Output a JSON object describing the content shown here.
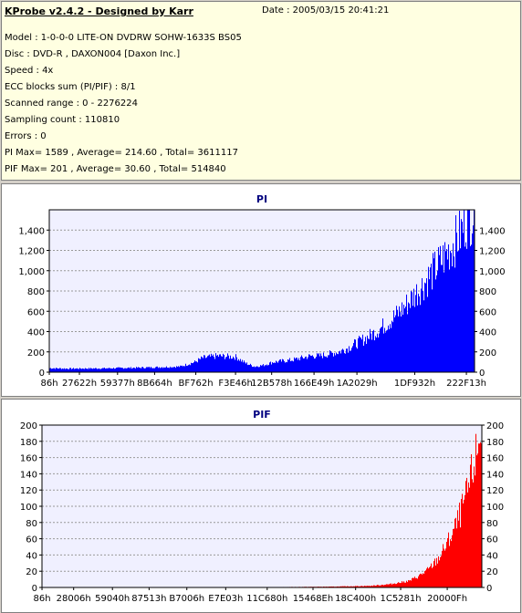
{
  "info": {
    "title": "KProbe v2.4.2 - Designed by Karr",
    "date": "Date : 2005/03/15 20:41:21",
    "lines": [
      "Model : 1-0-0-0 LITE-ON DVDRW SOHW-1633S BS05",
      "Disc : DVD-R , DAXON004 [Daxon Inc.]",
      "Speed : 4x",
      "ECC blocks sum (PI/PIF) : 8/1",
      "Scanned range : 0 - 2276224",
      "Sampling count : 110810",
      "Errors : 0",
      "PI Max= 1589 , Average= 214.60 , Total= 3611117",
      "PIF Max= 201 , Average= 30.60 , Total= 514840"
    ]
  },
  "chart_data": [
    {
      "type": "area",
      "title": "PI",
      "color": "#0000ff",
      "title_color": "#000080",
      "xlabel": "",
      "ylabel": "",
      "xlim": [
        0,
        2276224
      ],
      "ylim": [
        0,
        1600
      ],
      "yticks": [
        0,
        200,
        400,
        600,
        800,
        1000,
        1200,
        1400
      ],
      "ytick_labels": [
        "0",
        "200",
        "400",
        "600",
        "800",
        "1,000",
        "1,200",
        "1,400"
      ],
      "xticks": [
        134,
        161314,
        365431,
        563812,
        784226,
        996931,
        1190264,
        1417033,
        1646633,
        1956146,
        2232596
      ],
      "xtick_labels": [
        "86h",
        "27622h",
        "59377h",
        "8B664h",
        "BF762h",
        "F3E46h",
        "12B578h",
        "166E49h",
        "1A2029h",
        "1DF932h",
        "222F13h"
      ],
      "grid": true,
      "x": [
        0,
        100000,
        300000,
        500000,
        700000,
        780000,
        820000,
        900000,
        1000000,
        1050000,
        1100000,
        1150000,
        1200000,
        1250000,
        1300000,
        1350000,
        1400000,
        1450000,
        1500000,
        1550000,
        1600000,
        1650000,
        1700000,
        1750000,
        1800000,
        1850000,
        1900000,
        1950000,
        2000000,
        2050000,
        2100000,
        2150000,
        2200000,
        2230000,
        2276224
      ],
      "y": [
        40,
        35,
        38,
        45,
        55,
        100,
        140,
        160,
        150,
        90,
        55,
        70,
        100,
        110,
        120,
        140,
        160,
        160,
        180,
        200,
        240,
        290,
        340,
        400,
        470,
        550,
        640,
        750,
        860,
        980,
        1100,
        1230,
        1360,
        1500,
        1589
      ]
    },
    {
      "type": "area",
      "title": "PIF",
      "color": "#ff0000",
      "title_color": "#000080",
      "xlabel": "",
      "ylabel": "",
      "xlim": [
        0,
        2276224
      ],
      "ylim": [
        0,
        200
      ],
      "yticks": [
        0,
        20,
        40,
        60,
        80,
        100,
        120,
        140,
        160,
        180,
        200
      ],
      "ytick_labels": [
        "0",
        "20",
        "40",
        "60",
        "80",
        "100",
        "120",
        "140",
        "160",
        "180",
        "200"
      ],
      "xticks": [
        134,
        163846,
        364608,
        554259,
        749574,
        950787,
        1165440,
        1402504,
        1623040,
        1856129,
        2097167
      ],
      "xtick_labels": [
        "86h",
        "28006h",
        "59040h",
        "87513h",
        "B7006h",
        "E7E03h",
        "11C680h",
        "15468Eh",
        "18C400h",
        "1C5281h",
        "20000Fh"
      ],
      "grid": true,
      "x": [
        0,
        1000000,
        1500000,
        1700000,
        1800000,
        1900000,
        1950000,
        2000000,
        2050000,
        2100000,
        2150000,
        2200000,
        2250000,
        2276224
      ],
      "y": [
        0,
        0,
        1,
        2,
        4,
        8,
        14,
        22,
        35,
        55,
        80,
        115,
        165,
        201
      ]
    }
  ]
}
